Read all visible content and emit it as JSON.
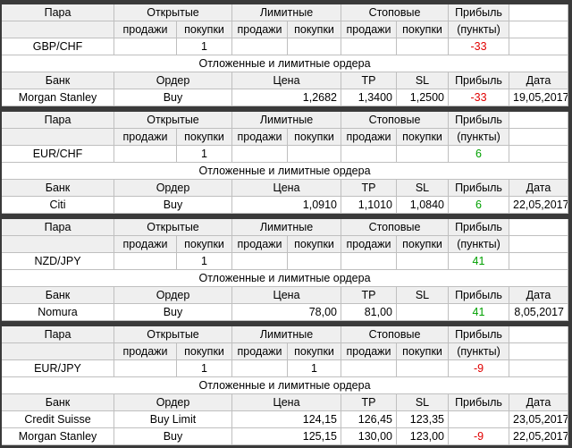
{
  "headers": {
    "pair": "Пара",
    "open": "Открытые",
    "limit": "Лимитные",
    "stop": "Стоповые",
    "profit": "Прибыль",
    "sell": "продажи",
    "buy": "покупки",
    "points": "(пункты)",
    "pending": "Отложенные и лимитные ордера",
    "bank": "Банк",
    "order": "Ордер",
    "price": "Цена",
    "tp": "TP",
    "sl": "SL",
    "date": "Дата"
  },
  "blocks": [
    {
      "pair": "GBP/CHF",
      "open_buy": "1",
      "profit": "-33",
      "profit_color": "#e00000",
      "orders": [
        {
          "bank": "Morgan Stanley",
          "order": "Buy",
          "price": "1,2682",
          "tp": "1,3400",
          "sl": "1,2500",
          "profit": "-33",
          "date": "19,05,2017"
        }
      ]
    },
    {
      "pair": "EUR/CHF",
      "open_buy": "1",
      "profit": "6",
      "profit_color": "#00a000",
      "orders": [
        {
          "bank": "Citi",
          "order": "Buy",
          "price": "1,0910",
          "tp": "1,1010",
          "sl": "1,0840",
          "profit": "6",
          "date": "22,05,2017"
        }
      ]
    },
    {
      "pair": "NZD/JPY",
      "open_buy": "1",
      "profit": "41",
      "profit_color": "#00a000",
      "orders": [
        {
          "bank": "Nomura",
          "order": "Buy",
          "price": "78,00",
          "tp": "81,00",
          "profit": "41",
          "date": "8,05,2017"
        }
      ]
    },
    {
      "pair": "EUR/JPY",
      "open_buy": "1",
      "limit_buy": "1",
      "profit": "-9",
      "profit_color": "#e00000",
      "orders": [
        {
          "bank": "Credit Suisse",
          "order": "Buy Limit",
          "price": "124,15",
          "tp": "126,45",
          "sl": "123,35",
          "date": "23,05,2017"
        },
        {
          "bank": "Morgan Stanley",
          "order": "Buy",
          "price": "125,15",
          "tp": "130,00",
          "sl": "123,00",
          "profit": "-9",
          "date": "22,05,2017"
        }
      ]
    }
  ]
}
